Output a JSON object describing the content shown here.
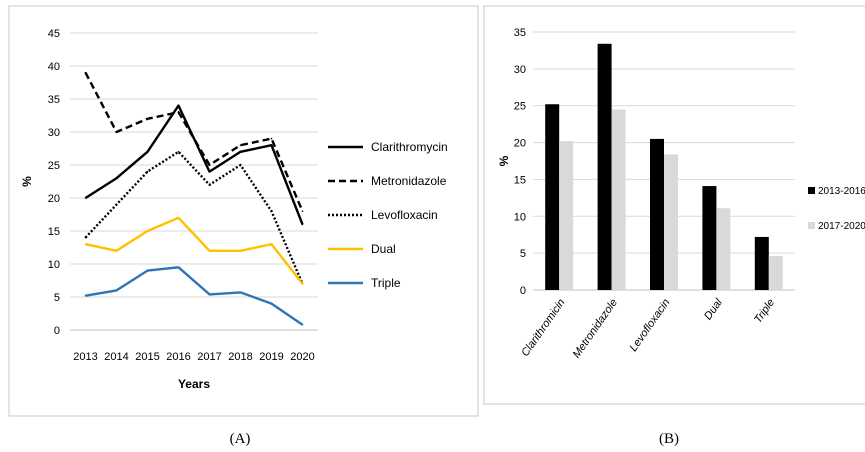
{
  "chart_data": [
    {
      "type": "line",
      "panel_label": "(A)",
      "xlabel": "Years",
      "ylabel": "%",
      "x": [
        "2013",
        "2014",
        "2015",
        "2016",
        "2017",
        "2018",
        "2019",
        "2020"
      ],
      "ylim": [
        0,
        45
      ],
      "yticks": [
        "0",
        "5",
        "10",
        "15",
        "20",
        "25",
        "30",
        "35",
        "40",
        "45"
      ],
      "grid": true,
      "legend_position": "right",
      "series": [
        {
          "name": "Clarithromycin",
          "values": [
            20,
            23,
            27,
            34,
            24,
            27,
            28,
            16
          ],
          "color": "#000000",
          "style": "solid"
        },
        {
          "name": "Metronidazole",
          "values": [
            39,
            30,
            32,
            33,
            25,
            28,
            29,
            18
          ],
          "color": "#000000",
          "style": "dashed"
        },
        {
          "name": "Levofloxacin",
          "values": [
            14,
            19,
            24,
            27,
            22,
            25,
            18,
            7
          ],
          "color": "#000000",
          "style": "dotted"
        },
        {
          "name": "Dual",
          "values": [
            13,
            12,
            15,
            17,
            12,
            12,
            13,
            7
          ],
          "color": "#FFC000",
          "style": "solid"
        },
        {
          "name": "Triple",
          "values": [
            5.2,
            6,
            9,
            9.5,
            5.4,
            5.7,
            4,
            0.8
          ],
          "color": "#2E75B6",
          "style": "solid"
        }
      ]
    },
    {
      "type": "bar",
      "panel_label": "(B)",
      "ylabel": "%",
      "categories": [
        "Clarithromicin",
        "Metronidazole",
        "Levofloxacin",
        "Dual",
        "Triple"
      ],
      "ylim": [
        0,
        35
      ],
      "yticks": [
        "0",
        "5",
        "10",
        "15",
        "20",
        "25",
        "30",
        "35"
      ],
      "grid": true,
      "legend_position": "right",
      "series": [
        {
          "name": "2013-2016",
          "values": [
            25.2,
            33.4,
            20.5,
            14.1,
            7.2
          ],
          "color": "#000000"
        },
        {
          "name": "2017-2020",
          "values": [
            20.2,
            24.5,
            18.4,
            11.1,
            4.6
          ],
          "color": "#D9D9D9"
        }
      ]
    }
  ]
}
